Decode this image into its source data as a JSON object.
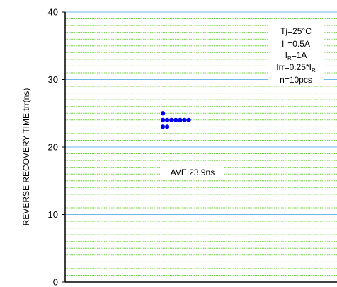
{
  "chart_data": {
    "type": "scatter",
    "ylabel": "REVERSE RECOVERY TIME:trr(ns)",
    "xlabel": "",
    "ylim": [
      0,
      40
    ],
    "yticks": [
      "0",
      "10",
      "20",
      "30",
      "40"
    ],
    "grid": true,
    "colors": {
      "minor_grid": "#6fd13a",
      "major_grid": "#6fb7e8",
      "points": "#0000ee"
    },
    "series": [
      {
        "points": [
          {
            "x": 1,
            "y": 25
          },
          {
            "x": 1,
            "y": 24
          },
          {
            "x": 1,
            "y": 23
          },
          {
            "x": 2,
            "y": 24
          },
          {
            "x": 2,
            "y": 23
          },
          {
            "x": 3,
            "y": 24
          },
          {
            "x": 4,
            "y": 24
          },
          {
            "x": 5,
            "y": 24
          },
          {
            "x": 6,
            "y": 24
          },
          {
            "x": 7,
            "y": 24
          }
        ]
      }
    ],
    "average_label": "AVE:23.9ns",
    "conditions": {
      "tj": "Tj=25°C",
      "if_main": "I",
      "if_sub": "F",
      "if_tail": "=0.5A",
      "ir_main": "I",
      "ir_sub": "R",
      "ir_tail": "=1A",
      "irr_main": "Irr=0.25*I",
      "irr_sub": "R",
      "n": "n=10pcs"
    }
  }
}
